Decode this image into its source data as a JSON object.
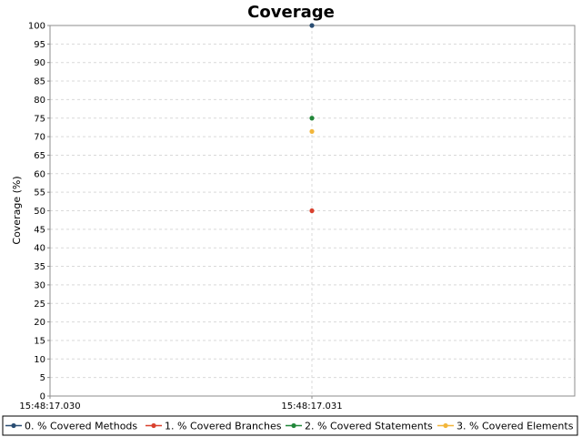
{
  "chart_data": {
    "type": "line",
    "title": "Coverage",
    "xlabel": "",
    "ylabel": "Coverage (%)",
    "ylim": [
      0,
      100
    ],
    "yticks": [
      0,
      5,
      10,
      15,
      20,
      25,
      30,
      35,
      40,
      45,
      50,
      55,
      60,
      65,
      70,
      75,
      80,
      85,
      90,
      95,
      100
    ],
    "xticks": [
      "15:48:17.030",
      "15:48:17.031"
    ],
    "grid": true,
    "legend_position": "bottom",
    "x": [
      "15:48:17.031"
    ],
    "series": [
      {
        "name": "0. % Covered Methods",
        "values": [
          100
        ],
        "color": "#2a4d73"
      },
      {
        "name": "1. % Covered Branches",
        "values": [
          50
        ],
        "color": "#d9412e"
      },
      {
        "name": "2. % Covered Statements",
        "values": [
          75
        ],
        "color": "#22873a"
      },
      {
        "name": "3. % Covered Elements",
        "values": [
          71.4
        ],
        "color": "#f2b63b"
      }
    ]
  }
}
